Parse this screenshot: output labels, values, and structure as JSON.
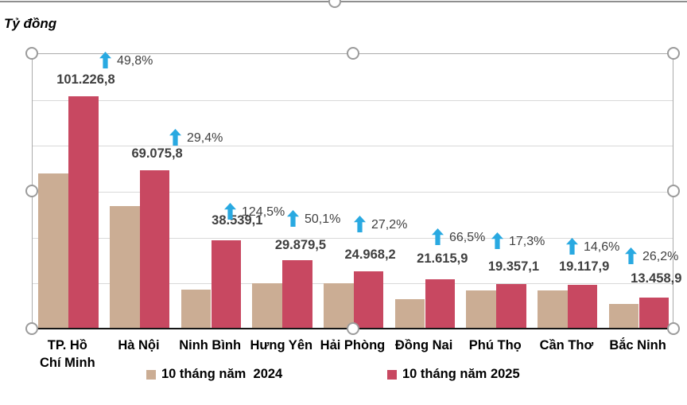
{
  "unit_label": "Tỷ đồng",
  "legend": [
    {
      "label": "10 tháng năm  2024",
      "color": "#cbad94"
    },
    {
      "label": "10 tháng năm 2025",
      "color": "#c84861"
    }
  ],
  "colors": {
    "bar_2024": "#cbad94",
    "bar_2025": "#c84861",
    "growth_arrow": "#29a9e1",
    "value_label_text": "#3f3f3f",
    "percent_text": "#404040",
    "gridline": "#d9d9d9",
    "plot_border": "#ababab",
    "axis_line": "#151515",
    "selection_handle": "#9b9b9b"
  },
  "icons": {
    "growth_arrow": "up-arrow-icon",
    "selection_handle": "circle-handle-icon"
  },
  "chart_data": {
    "type": "bar",
    "title": "",
    "ylabel": "Tỷ đồng",
    "xlabel": "",
    "ylim": [
      0,
      120000
    ],
    "gridline_step": 20000,
    "grid": true,
    "legend_position": "bottom",
    "categories": [
      "TP. Hồ Chí Minh",
      "Hà Nội",
      "Ninh Bình",
      "Hưng Yên",
      "Hải Phòng",
      "Đồng Nai",
      "Phú Thọ",
      "Cần Thơ",
      "Bắc Ninh"
    ],
    "series": [
      {
        "name": "10 tháng năm  2024",
        "values": [
          67574.6,
          53382.4,
          17166.5,
          19906.4,
          19629.9,
          12982.5,
          16502.2,
          16681.4,
          10664.7
        ],
        "values_estimated_from_bar_heights": true,
        "data_labels_shown": false
      },
      {
        "name": "10 tháng năm 2025",
        "values": [
          101226.8,
          69075.8,
          38539.1,
          29879.5,
          24968.2,
          21615.9,
          19357.1,
          19117.9,
          13458.9
        ],
        "data_labels": [
          "101.226,8",
          "69.075,8",
          "38.539,1",
          "29.879,5",
          "24.968,2",
          "21.615,9",
          "19.357,1",
          "19.117,9",
          "13.458,9"
        ],
        "data_labels_shown": true
      }
    ],
    "growth_percent": [
      49.8,
      29.4,
      124.5,
      50.1,
      27.2,
      66.5,
      17.3,
      14.6,
      26.2
    ],
    "growth_labels": [
      "49,8%",
      "29,4%",
      "124,5%",
      "50,1%",
      "27,2%",
      "66,5%",
      "17,3%",
      "14,6%",
      "26,2%"
    ]
  }
}
